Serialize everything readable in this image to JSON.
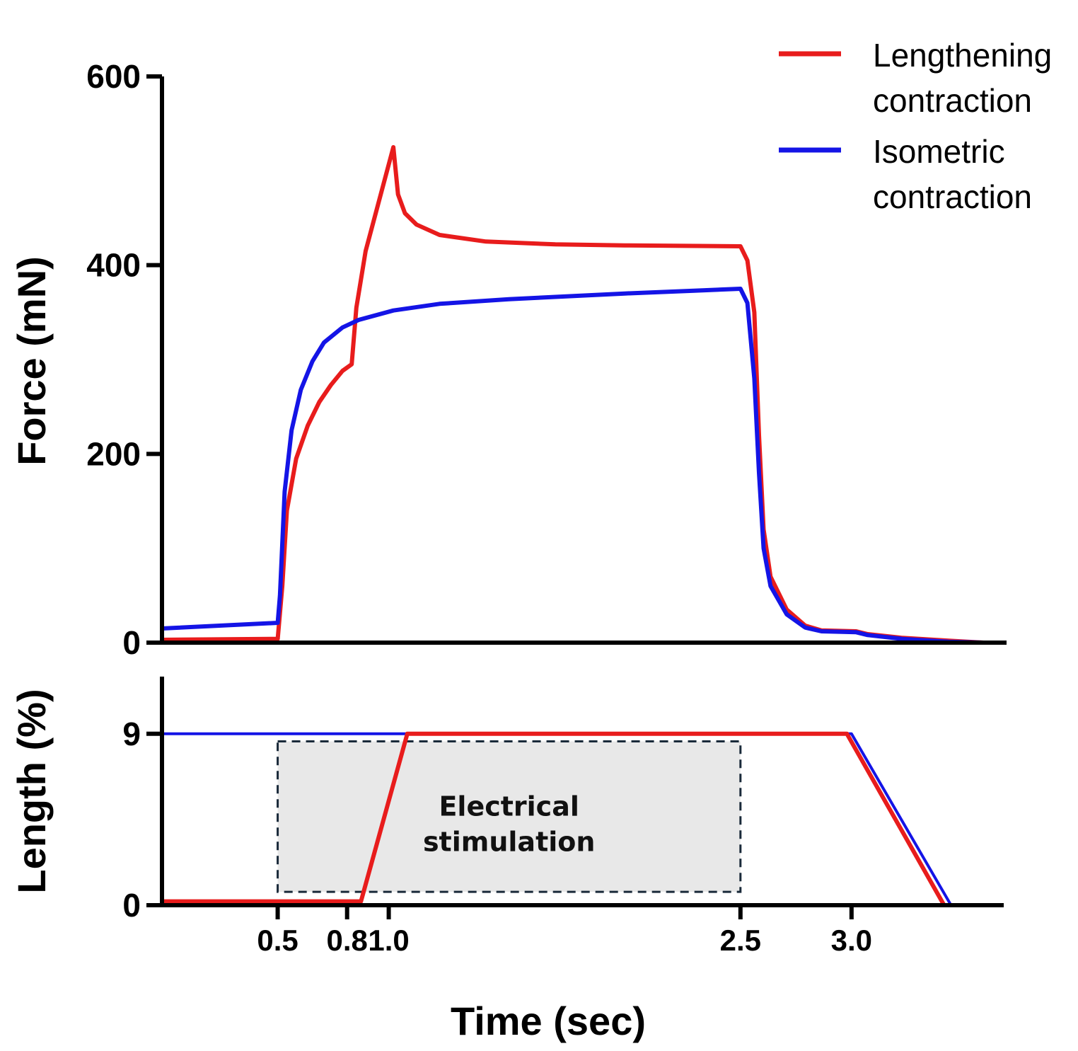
{
  "chart_data": [
    {
      "type": "line",
      "panel": "force",
      "ylabel": "Force (mN)",
      "ylim": [
        0,
        600
      ],
      "xlim": [
        0,
        3.65
      ],
      "yticks": [
        "0",
        "200",
        "400",
        "600"
      ],
      "ytick_values": [
        0,
        200,
        400,
        600
      ],
      "series": [
        {
          "name": "Lengthening contraction",
          "color": "#e81c1c",
          "points": [
            [
              0,
              3
            ],
            [
              0.5,
              4
            ],
            [
              0.52,
              60
            ],
            [
              0.54,
              140
            ],
            [
              0.58,
              195
            ],
            [
              0.63,
              230
            ],
            [
              0.68,
              255
            ],
            [
              0.73,
              273
            ],
            [
              0.78,
              288
            ],
            [
              0.82,
              295
            ],
            [
              0.84,
              355
            ],
            [
              0.88,
              415
            ],
            [
              0.94,
              470
            ],
            [
              1.0,
              525
            ],
            [
              1.02,
              475
            ],
            [
              1.05,
              455
            ],
            [
              1.1,
              443
            ],
            [
              1.2,
              432
            ],
            [
              1.4,
              425
            ],
            [
              1.7,
              422
            ],
            [
              2.0,
              421
            ],
            [
              2.5,
              420
            ],
            [
              2.53,
              405
            ],
            [
              2.56,
              350
            ],
            [
              2.58,
              220
            ],
            [
              2.6,
              120
            ],
            [
              2.63,
              70
            ],
            [
              2.7,
              35
            ],
            [
              2.78,
              18
            ],
            [
              2.85,
              13
            ],
            [
              3.0,
              12
            ],
            [
              3.05,
              9
            ],
            [
              3.2,
              5
            ],
            [
              3.4,
              2
            ],
            [
              3.55,
              0
            ]
          ]
        },
        {
          "name": "Isometric contraction",
          "color": "#1414e6",
          "points": [
            [
              0,
              15
            ],
            [
              0.5,
              21
            ],
            [
              0.51,
              50
            ],
            [
              0.53,
              160
            ],
            [
              0.56,
              225
            ],
            [
              0.6,
              268
            ],
            [
              0.65,
              298
            ],
            [
              0.7,
              318
            ],
            [
              0.78,
              334
            ],
            [
              0.85,
              342
            ],
            [
              1.0,
              352
            ],
            [
              1.2,
              359
            ],
            [
              1.5,
              364
            ],
            [
              2.0,
              370
            ],
            [
              2.3,
              373
            ],
            [
              2.5,
              375
            ],
            [
              2.53,
              360
            ],
            [
              2.56,
              280
            ],
            [
              2.58,
              180
            ],
            [
              2.6,
              100
            ],
            [
              2.63,
              60
            ],
            [
              2.7,
              30
            ],
            [
              2.78,
              16
            ],
            [
              2.85,
              12
            ],
            [
              3.0,
              11
            ],
            [
              3.05,
              8
            ],
            [
              3.2,
              4
            ],
            [
              3.4,
              1
            ],
            [
              3.55,
              0
            ]
          ]
        }
      ],
      "legend_placement": "top-right"
    },
    {
      "type": "line",
      "panel": "length",
      "ylabel": "Length (%)",
      "xlabel": "Time (sec)",
      "ylim": [
        0,
        12
      ],
      "xlim": [
        0,
        3.65
      ],
      "yticks": [
        "0",
        "9"
      ],
      "ytick_values": [
        0,
        9
      ],
      "xticks": [
        "0.5",
        "0.8",
        "1.0",
        "2.5",
        "3.0"
      ],
      "xtick_values": [
        0.5,
        0.8,
        0.98,
        2.5,
        2.98
      ],
      "series": [
        {
          "name": "Isometric contraction",
          "color": "#1414e6",
          "points": [
            [
              0,
              9
            ],
            [
              2.98,
              9
            ],
            [
              3.41,
              0
            ]
          ]
        },
        {
          "name": "Lengthening contraction",
          "color": "#e81c1c",
          "points": [
            [
              0,
              0.2
            ],
            [
              0.86,
              0.2
            ],
            [
              1.06,
              9
            ],
            [
              2.96,
              9
            ],
            [
              3.38,
              0
            ]
          ]
        }
      ],
      "annotation": {
        "text_line1": "Electrical",
        "text_line2": "stimulation",
        "x_start": 0.5,
        "x_end": 2.5,
        "y_low": 0.7,
        "y_high": 8.6
      }
    }
  ],
  "legend": {
    "items": [
      {
        "line1": "Lengthening",
        "line2": "contraction",
        "color": "#e81c1c"
      },
      {
        "line1": "Isometric",
        "line2": "contraction",
        "color": "#1414e6"
      }
    ]
  }
}
